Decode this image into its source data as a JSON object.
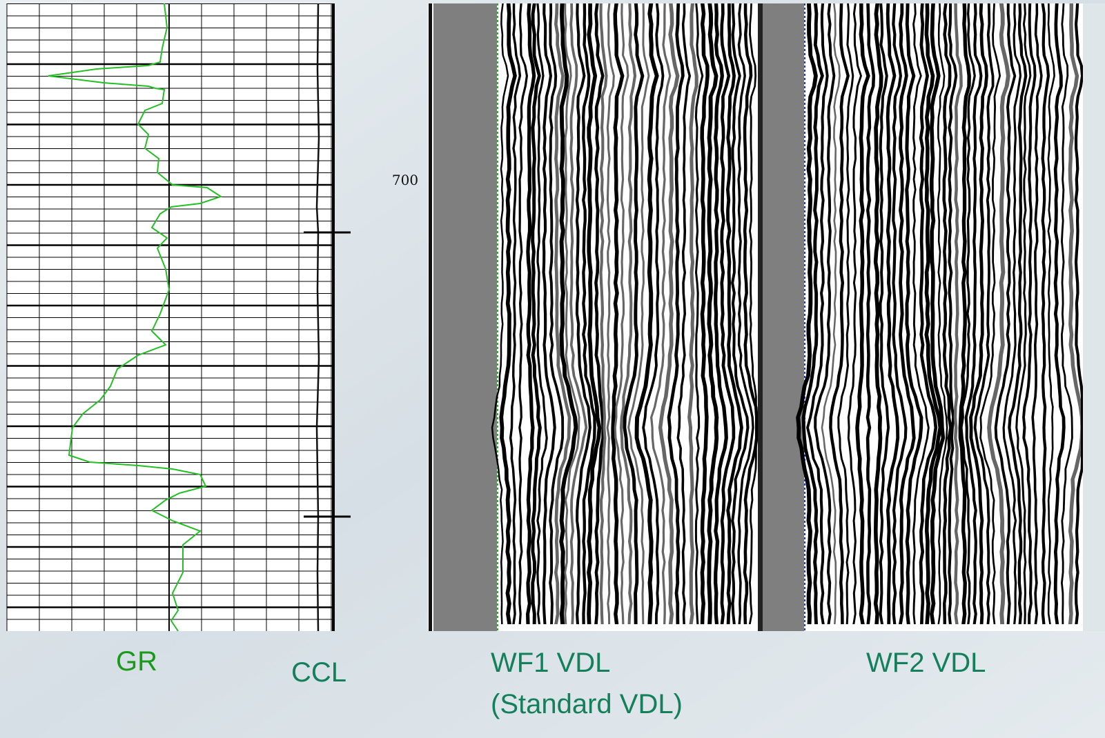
{
  "depth_label": "700",
  "track_labels": {
    "gr": "GR",
    "ccl": "CCL",
    "wf1": [
      "WF1 VDL",
      "(Standard VDL)"
    ],
    "wf2": "WF2 VDL"
  }
}
